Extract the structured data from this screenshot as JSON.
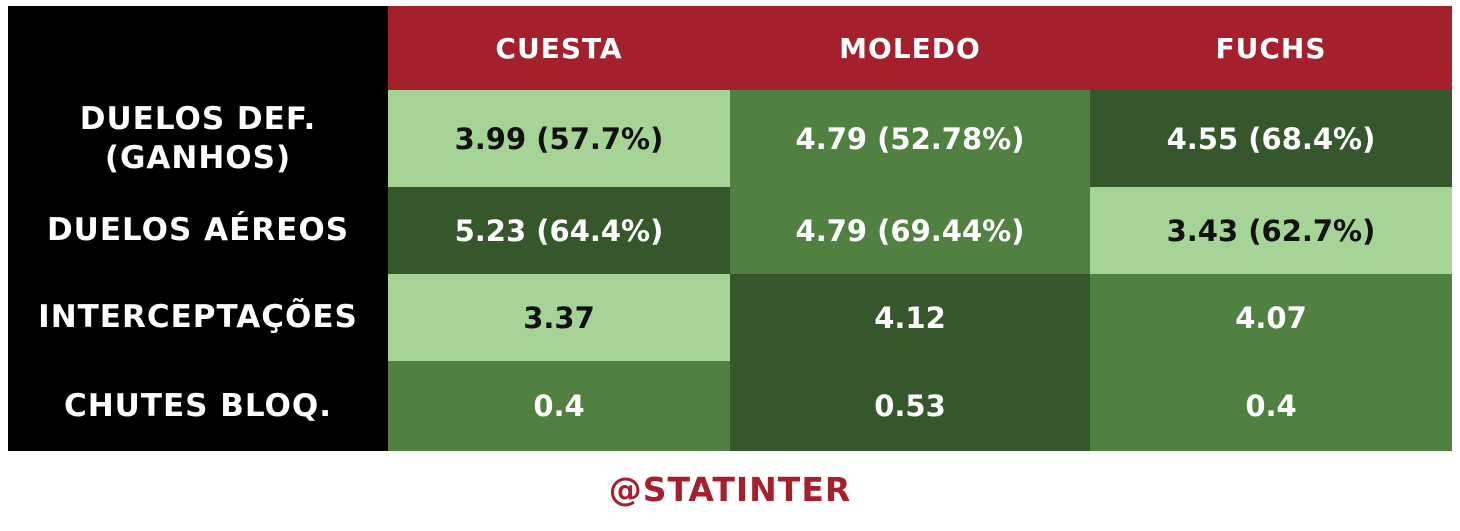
{
  "chart_data": {
    "type": "table",
    "columns": [
      "CUESTA",
      "MOLEDO",
      "FUCHS"
    ],
    "rows": [
      {
        "label_lines": [
          "DUELOS DEF.",
          "(GANHOS)"
        ],
        "cells": [
          "3.99 (57.7%)",
          "4.79 (52.78%)",
          "4.55 (68.4%)"
        ],
        "shades": [
          "light",
          "medium",
          "dark"
        ]
      },
      {
        "label_lines": [
          "DUELOS AÉREOS"
        ],
        "cells": [
          "5.23 (64.4%)",
          "4.79 (69.44%)",
          "3.43 (62.7%)"
        ],
        "shades": [
          "dark",
          "medium",
          "light"
        ]
      },
      {
        "label_lines": [
          "INTERCEPTAÇÕES"
        ],
        "cells": [
          "3.37",
          "4.12",
          "4.07"
        ],
        "shades": [
          "light",
          "dark",
          "medium"
        ]
      },
      {
        "label_lines": [
          "CHUTES BLOQ."
        ],
        "cells": [
          "0.4",
          "0.53",
          "0.4"
        ],
        "shades": [
          "medium",
          "dark",
          "medium"
        ]
      }
    ]
  },
  "colors": {
    "header": "#a4202d",
    "label_bg": "#000000",
    "light": "#a6d396",
    "medium": "#508140",
    "dark": "#36562b",
    "light_text": "#111111",
    "other_text": "#ffffff",
    "footer_text": "#a4202d"
  },
  "footer": {
    "handle": "@STATINTER"
  }
}
